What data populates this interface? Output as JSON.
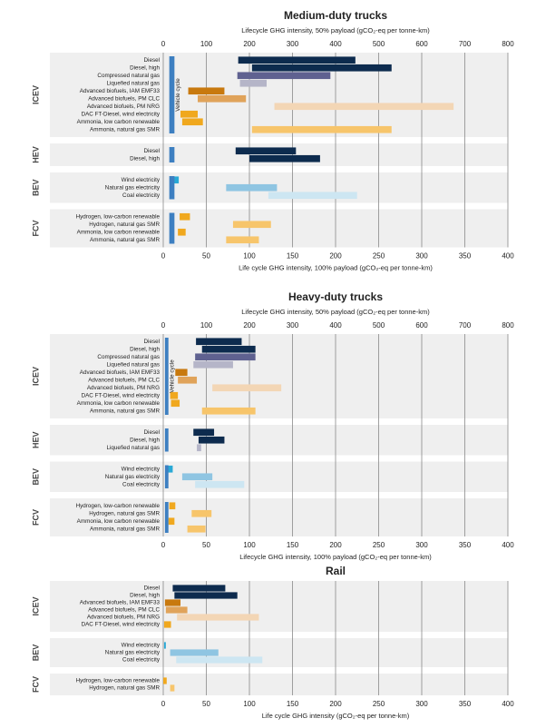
{
  "chart_data": [
    {
      "type": "range_bar",
      "title": "Medium-duty trucks",
      "x2_label": "Lifecycle GHG intensity, 50% payload (gCO₂-eq per tonne-km)",
      "x2lim": [
        0,
        800
      ],
      "x2ticks": [
        0,
        100,
        200,
        300,
        400,
        500,
        600,
        700,
        800
      ],
      "x_label": "Life cycle GHG intensity, 100% payload (gCO₂-eq per tonne-km)",
      "xlim": [
        0,
        400
      ],
      "xticks": [
        0,
        50,
        100,
        150,
        200,
        250,
        300,
        350,
        400
      ],
      "grid": true,
      "vehicle_cycle": {
        "label": "Vehicle cycle",
        "values": [
          7,
          13
        ],
        "color": "#3d7fc1"
      },
      "groups": [
        {
          "name": "ICEV",
          "categories": [
            "Diesel",
            "Diesel, high",
            "Compressed natural gas",
            "Liquefied natural gas",
            "Advanced biofuels, IAM EMF33",
            "Advanced biofuels, PM CLC",
            "Advanced biofuels, PM NRG",
            "DAC FT-Diesel, wind electricity",
            "Ammonia, low carbon renewable",
            "Ammonia, natural gas SMR"
          ],
          "values": [
            [
              87,
              223
            ],
            [
              103,
              265
            ],
            [
              86,
              194
            ],
            [
              89,
              120
            ],
            [
              29,
              71
            ],
            [
              40,
              96
            ],
            [
              129,
              337
            ],
            [
              20,
              40
            ],
            [
              22,
              46
            ],
            [
              103,
              265
            ]
          ],
          "colors": [
            "#0d2b4e",
            "#0d2b4e",
            "#5f6190",
            "#b5b5c8",
            "#c8790e",
            "#e0a35a",
            "#f3d6b5",
            "#f0a81e",
            "#f0a81e",
            "#f7c56b"
          ]
        },
        {
          "name": "HEV",
          "categories": [
            "Diesel",
            "Diesel, high"
          ],
          "values": [
            [
              84,
              154
            ],
            [
              100,
              182
            ]
          ],
          "colors": [
            "#0d2b4e",
            "#0d2b4e"
          ]
        },
        {
          "name": "BEV",
          "categories": [
            "Wind electricity",
            "Natural gas electricity",
            "Coal electricity"
          ],
          "values": [
            [
              11,
              18
            ],
            [
              73,
              132
            ],
            [
              122,
              225
            ]
          ],
          "colors": [
            "#29a9d6",
            "#8fc5e2",
            "#cde6f2"
          ]
        },
        {
          "name": "FCV",
          "categories": [
            "Hydrogen, low-carbon renewable",
            "Hydrogen, natural gas SMR",
            "Ammonia, low carbon renewable",
            "Ammonia, natural gas SMR"
          ],
          "values": [
            [
              19,
              31
            ],
            [
              81,
              125
            ],
            [
              17,
              26
            ],
            [
              73,
              111
            ]
          ],
          "colors": [
            "#f0a81e",
            "#f7c56b",
            "#f0a81e",
            "#f7c56b"
          ]
        }
      ]
    },
    {
      "type": "range_bar",
      "title": "Heavy-duty trucks",
      "x2_label": "Lifecycle GHG intensity, 50% payload (gCO₂-eq per tonne-km)",
      "x2lim": [
        0,
        800
      ],
      "x2ticks": [
        0,
        100,
        200,
        300,
        400,
        500,
        600,
        700,
        800
      ],
      "x_label": "Lifecycle GHG intensity, 100% payload (gCO₂-eq per tonne-km)",
      "xlim": [
        0,
        400
      ],
      "xticks": [
        0,
        50,
        100,
        150,
        200,
        250,
        300,
        350,
        400
      ],
      "grid": true,
      "vehicle_cycle": {
        "label": "Vehicle cycle",
        "values": [
          2,
          6
        ],
        "color": "#3d7fc1"
      },
      "groups": [
        {
          "name": "ICEV",
          "categories": [
            "Diesel",
            "Diesel, high",
            "Compressed natural gas",
            "Liquefied natural gas",
            "Advanced biofuels, IAM EMF33",
            "Advanced biofuels, PM CLC",
            "Advanced biofuels, PM NRG",
            "DAC FT-Diesel, wind electricity",
            "Ammonia, low carbon renewable",
            "Ammonia, natural gas SMR"
          ],
          "values": [
            [
              38,
              91
            ],
            [
              45,
              107
            ],
            [
              37,
              107
            ],
            [
              35,
              81
            ],
            [
              14,
              28
            ],
            [
              17,
              39
            ],
            [
              57,
              137
            ],
            [
              8,
              17
            ],
            [
              9,
              19
            ],
            [
              45,
              107
            ]
          ],
          "colors": [
            "#0d2b4e",
            "#0d2b4e",
            "#5f6190",
            "#b5b5c8",
            "#c8790e",
            "#e0a35a",
            "#f3d6b5",
            "#f0a81e",
            "#f0a81e",
            "#f7c56b"
          ]
        },
        {
          "name": "HEV",
          "categories": [
            "Diesel",
            "Diesel, high",
            "Liquefied natural gas"
          ],
          "values": [
            [
              35,
              59
            ],
            [
              41,
              71
            ],
            [
              39,
              44
            ]
          ],
          "colors": [
            "#0d2b4e",
            "#0d2b4e",
            "#b5b5c8"
          ]
        },
        {
          "name": "BEV",
          "categories": [
            "Wind electricity",
            "Natural gas electricity",
            "Coal electricity"
          ],
          "values": [
            [
              3,
              11
            ],
            [
              22,
              57
            ],
            [
              37,
              94
            ]
          ],
          "colors": [
            "#29a9d6",
            "#8fc5e2",
            "#cde6f2"
          ]
        },
        {
          "name": "FCV",
          "categories": [
            "Hydrogen, low-carbon renewable",
            "Hydrogen, natural gas SMR",
            "Ammonia, low carbon renewable",
            "Ammonia, natural gas SMR"
          ],
          "values": [
            [
              7,
              14
            ],
            [
              33,
              56
            ],
            [
              6,
              13
            ],
            [
              28,
              49
            ]
          ],
          "colors": [
            "#f0a81e",
            "#f7c56b",
            "#f0a81e",
            "#f7c56b"
          ]
        }
      ]
    },
    {
      "type": "range_bar",
      "title": "Rail",
      "x_label": "Life cycle GHG intensity (gCO₂-eq per tonne-km)",
      "xlim": [
        0,
        400
      ],
      "xticks": [
        0,
        50,
        100,
        150,
        200,
        250,
        300,
        350,
        400
      ],
      "grid": true,
      "groups": [
        {
          "name": "ICEV",
          "categories": [
            "Diesel",
            "Diesel, high",
            "Advanced biofuels, IAM EMF33",
            "Advanced biofuels, PM CLC",
            "Advanced biofuels, PM NRG",
            "DAC FT-Diesel, wind electricity"
          ],
          "values": [
            [
              11,
              72
            ],
            [
              13,
              86
            ],
            [
              2,
              20
            ],
            [
              3,
              28
            ],
            [
              16,
              111
            ],
            [
              1,
              9
            ]
          ],
          "colors": [
            "#0d2b4e",
            "#0d2b4e",
            "#c8790e",
            "#e0a35a",
            "#f3d6b5",
            "#f0a81e"
          ]
        },
        {
          "name": "BEV",
          "categories": [
            "Wind electricity",
            "Natural gas electricity",
            "Coal electricity"
          ],
          "values": [
            [
              1,
              3
            ],
            [
              8,
              64
            ],
            [
              15,
              115
            ]
          ],
          "colors": [
            "#29a9d6",
            "#8fc5e2",
            "#cde6f2"
          ]
        },
        {
          "name": "FCV",
          "categories": [
            "Hydrogen, low-carbon renewable",
            "Hydrogen, natural gas SMR"
          ],
          "values": [
            [
              0,
              4
            ],
            [
              8,
              13
            ]
          ],
          "colors": [
            "#f0a81e",
            "#f7c56b"
          ]
        }
      ]
    }
  ]
}
